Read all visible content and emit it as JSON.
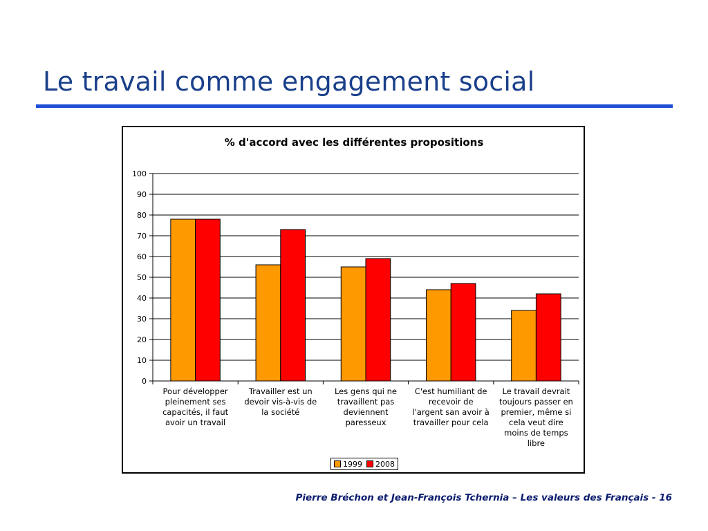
{
  "slide": {
    "title": "Le travail comme engagement social",
    "footer": "Pierre Bréchon et Jean-François Tchernia – Les valeurs des Français - 16"
  },
  "colors": {
    "series_1999": "#ff9900",
    "series_2008": "#ff0000",
    "title": "#1a3f8a",
    "rule": "#1f4fd6",
    "footer": "#0b1c6e"
  },
  "chart_data": {
    "type": "bar",
    "title": "% d'accord avec les différentes propositions",
    "categories": [
      "Pour développer pleinement ses capacités, il faut avoir un travail",
      "Travailler est un devoir vis-à-vis de la société",
      "Les gens qui ne travaillent pas deviennent paresseux",
      "C'est humiliant de recevoir de l'argent san avoir à travailler pour cela",
      "Le travail devrait toujours passer en premier, même si cela veut dire moins de temps libre"
    ],
    "category_lines": [
      [
        "Pour développer",
        "pleinement ses",
        "capacités, il faut",
        "avoir un travail"
      ],
      [
        "Travailler est un",
        "devoir vis-à-vis de",
        "la société"
      ],
      [
        "Les gens qui ne",
        "travaillent pas",
        "deviennent",
        "paresseux"
      ],
      [
        "C'est humiliant de",
        "recevoir de",
        "l'argent san avoir à",
        "travailler pour cela"
      ],
      [
        "Le travail devrait",
        "toujours passer en",
        "premier, même si",
        "cela veut dire",
        "moins de temps",
        "libre"
      ]
    ],
    "series": [
      {
        "name": "1999",
        "values": [
          78,
          56,
          55,
          44,
          34
        ]
      },
      {
        "name": "2008",
        "values": [
          78,
          73,
          59,
          47,
          42
        ]
      }
    ],
    "ylim": [
      0,
      100
    ],
    "yticks": [
      0,
      10,
      20,
      30,
      40,
      50,
      60,
      70,
      80,
      90,
      100
    ],
    "grid": true,
    "legend_position": "bottom"
  }
}
